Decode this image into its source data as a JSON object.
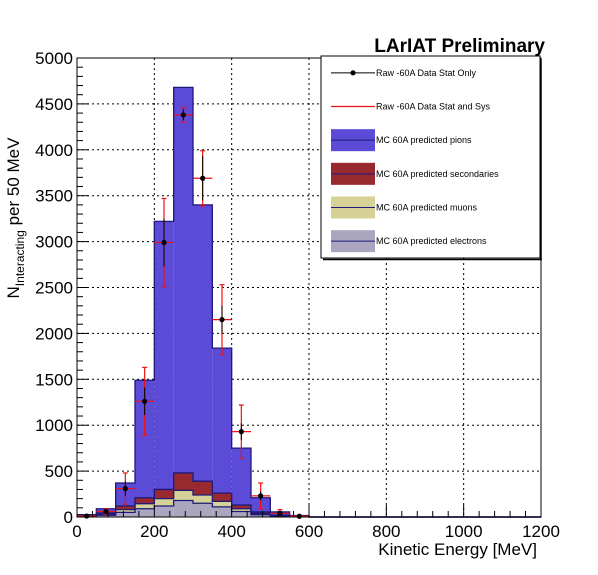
{
  "chart_data": {
    "type": "bar",
    "title": "LArIAT Preliminary",
    "xlabel": "Kinetic Energy [MeV]",
    "ylabel_main": "N",
    "ylabel_sub": "Interacting",
    "ylabel_rest": " per 50 MeV",
    "xlim": [
      0,
      1200
    ],
    "ylim": [
      0,
      5000
    ],
    "x_ticks": [
      0,
      200,
      400,
      600,
      800,
      1000,
      1200
    ],
    "x_tick_labels": [
      "0",
      "200",
      "400",
      "600",
      "800",
      "1000",
      "1200"
    ],
    "y_ticks": [
      0,
      500,
      1000,
      1500,
      2000,
      2500,
      3000,
      3500,
      4000,
      4500,
      5000
    ],
    "y_tick_labels": [
      "0",
      "500",
      "1000",
      "1500",
      "2000",
      "2500",
      "3000",
      "3500",
      "4000",
      "4500",
      "5000"
    ],
    "grid": true,
    "legend_position": "top-right",
    "bin_width": 50,
    "bin_lows": [
      0,
      50,
      100,
      150,
      200,
      250,
      300,
      350,
      400,
      450,
      500,
      550,
      600,
      650,
      700,
      750,
      800,
      850,
      900,
      950,
      1000,
      1050,
      1100,
      1150
    ],
    "stack": [
      {
        "name": "MC 60A predicted electrons",
        "color": "#aaa6c0",
        "values": [
          5,
          20,
          50,
          90,
          120,
          180,
          150,
          110,
          60,
          25,
          10,
          3,
          0,
          0,
          0,
          0,
          0,
          0,
          0,
          0,
          0,
          0,
          0,
          0
        ]
      },
      {
        "name": "MC 60A predicted muons",
        "color": "#d6d196",
        "values": [
          3,
          10,
          30,
          55,
          80,
          110,
          90,
          60,
          30,
          15,
          5,
          2,
          0,
          0,
          0,
          0,
          0,
          0,
          0,
          0,
          0,
          0,
          0,
          0
        ]
      },
      {
        "name": "MC 60A predicted secondaries",
        "color": "#98292f",
        "values": [
          4,
          15,
          40,
          65,
          100,
          190,
          150,
          90,
          40,
          15,
          5,
          1,
          0,
          0,
          0,
          0,
          0,
          0,
          0,
          0,
          0,
          0,
          0,
          0
        ]
      },
      {
        "name": "MC 60A predicted pions",
        "color": "#5b4bd6",
        "values": [
          13,
          45,
          250,
          1280,
          2920,
          4200,
          3010,
          1580,
          620,
          155,
          35,
          10,
          0,
          0,
          0,
          0,
          0,
          0,
          0,
          0,
          0,
          0,
          0,
          0
        ]
      }
    ],
    "data_series": [
      {
        "name": "Raw -60A Data Stat Only",
        "color": "#000000",
        "points": [
          {
            "x": 25,
            "y": 10,
            "err_stat": 8,
            "err_sys": 10
          },
          {
            "x": 75,
            "y": 60,
            "err_stat": 20,
            "err_sys": 30
          },
          {
            "x": 125,
            "y": 310,
            "err_stat": 80,
            "err_sys": 170
          },
          {
            "x": 175,
            "y": 1260,
            "err_stat": 150,
            "err_sys": 370
          },
          {
            "x": 225,
            "y": 2990,
            "err_stat": 260,
            "err_sys": 480
          },
          {
            "x": 275,
            "y": 4380,
            "err_stat": 60,
            "err_sys": 80
          },
          {
            "x": 325,
            "y": 3690,
            "err_stat": 240,
            "err_sys": 300
          },
          {
            "x": 375,
            "y": 2150,
            "err_stat": 150,
            "err_sys": 380
          },
          {
            "x": 425,
            "y": 930,
            "err_stat": 90,
            "err_sys": 290
          },
          {
            "x": 475,
            "y": 230,
            "err_stat": 50,
            "err_sys": 140
          },
          {
            "x": 525,
            "y": 40,
            "err_stat": 15,
            "err_sys": 40
          },
          {
            "x": 575,
            "y": 8,
            "err_stat": 5,
            "err_sys": 8
          }
        ]
      },
      {
        "name": "Raw -60A Data Stat and Sys",
        "color": "#ee1111"
      }
    ],
    "legend": [
      {
        "label": "Raw -60A Data Stat Only",
        "kind": "marker",
        "color": "#000000"
      },
      {
        "label": "Raw -60A Data Stat and Sys",
        "kind": "line",
        "color": "#ee1111"
      },
      {
        "label": "MC 60A predicted pions",
        "kind": "box",
        "color": "#5b4bd6"
      },
      {
        "label": "MC 60A predicted secondaries",
        "kind": "box",
        "color": "#98292f"
      },
      {
        "label": "MC 60A predicted muons",
        "kind": "box",
        "color": "#d6d196"
      },
      {
        "label": "MC 60A predicted electrons",
        "kind": "box",
        "color": "#aaa6c0"
      }
    ]
  }
}
